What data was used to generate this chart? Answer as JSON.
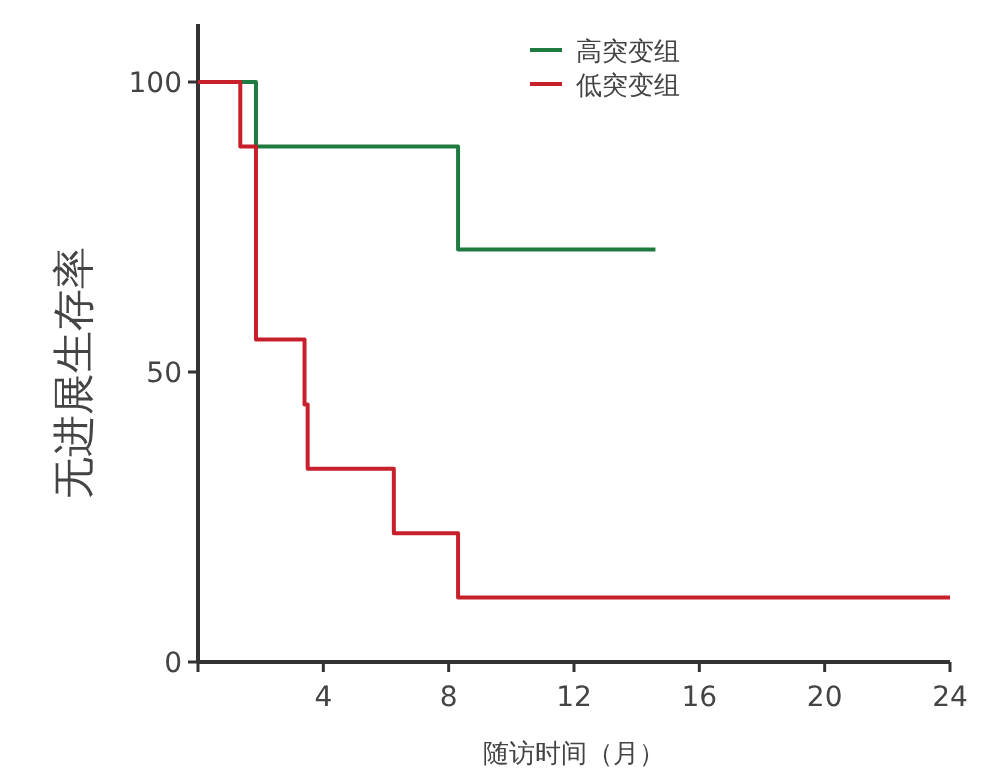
{
  "chart_data": {
    "type": "step",
    "xlabel": "随访时间（月）",
    "ylabel": "无进展生存率",
    "xlim": [
      0,
      24
    ],
    "ylim": [
      0,
      110
    ],
    "xticks": [
      {
        "value": 0,
        "label": null
      },
      4,
      8,
      12,
      16,
      20,
      24
    ],
    "yticks": [
      0,
      50,
      100
    ],
    "grid": false,
    "legend": "top",
    "series": [
      {
        "name": "高突变组",
        "color": "#1e7a3e",
        "x": [
          0,
          1.85,
          8.3,
          14.6
        ],
        "values": [
          100,
          88.9,
          71.1,
          71.1
        ]
      },
      {
        "name": "低突变组",
        "color": "#c8202a",
        "x": [
          0,
          1.35,
          1.85,
          3.4,
          3.5,
          6.25,
          8.3,
          24
        ],
        "values": [
          100,
          88.9,
          55.6,
          44.4,
          33.3,
          22.2,
          11.1,
          11.1
        ]
      }
    ]
  }
}
